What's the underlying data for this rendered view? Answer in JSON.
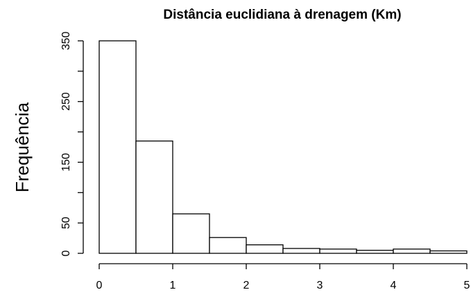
{
  "chart_data": {
    "type": "histogram",
    "title": "Distância euclidiana à drenagem (Km)",
    "y_label": "Frequência",
    "bins": [
      0,
      0.5,
      1,
      1.5,
      2,
      2.5,
      3,
      3.5,
      4,
      4.5,
      5
    ],
    "values": [
      350,
      185,
      65,
      26,
      14,
      8,
      7,
      5,
      7,
      4
    ],
    "color": "#ffffff",
    "xlim": [
      0,
      5
    ],
    "xticks": [
      0,
      1,
      2,
      3,
      4,
      5
    ],
    "ylim": [
      0,
      350
    ],
    "yticks": [
      0,
      50,
      150,
      250,
      350
    ],
    "yminor_ticks": [
      100,
      200,
      300
    ]
  }
}
